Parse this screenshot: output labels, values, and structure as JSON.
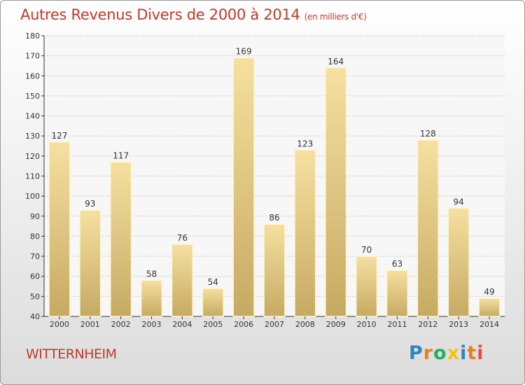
{
  "title": "Autres Revenus Divers de 2000 à 2014",
  "title_unit": "(en milliers d'€)",
  "location": "WITTERNHEIM",
  "logo": {
    "text": "Proxiti",
    "colors": [
      "#2e86c1",
      "#e67e22",
      "#27ae60",
      "#f1c40f",
      "#2e86c1",
      "#e67e22",
      "#e74c3c"
    ]
  },
  "colors": {
    "title": "#c0392b",
    "bar_top": "#f6e0a0",
    "bar_bottom": "#c6aa62",
    "bar_edge": "#fff6d8",
    "grid": "#c8c8c8",
    "axis": "#333333"
  },
  "chart_data": {
    "type": "bar",
    "categories": [
      "2000",
      "2001",
      "2002",
      "2003",
      "2004",
      "2005",
      "2006",
      "2007",
      "2008",
      "2009",
      "2010",
      "2011",
      "2012",
      "2013",
      "2014"
    ],
    "values": [
      127,
      93,
      117,
      58,
      76,
      54,
      169,
      86,
      123,
      164,
      70,
      63,
      128,
      94,
      49
    ],
    "ylim": [
      40,
      180
    ],
    "yticks": [
      40,
      50,
      60,
      70,
      80,
      90,
      100,
      110,
      120,
      130,
      140,
      150,
      160,
      170,
      180
    ],
    "grid": true,
    "data_labels": true
  }
}
